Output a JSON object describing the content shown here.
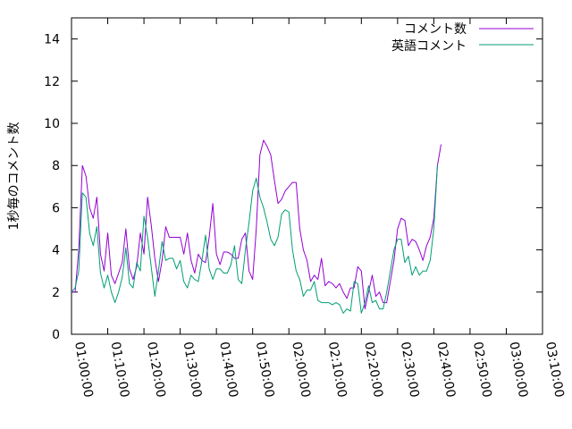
{
  "chart_data": {
    "type": "line",
    "title": "",
    "xlabel": "",
    "ylabel": "1秒毎のコメント数",
    "ylim": [
      0,
      15
    ],
    "y_ticks": [
      "0",
      "2",
      "4",
      "6",
      "8",
      "10",
      "12",
      "14"
    ],
    "y_tick_values": [
      0,
      2,
      4,
      6,
      8,
      10,
      12,
      14
    ],
    "x_ticks": [
      "01:00:00",
      "01:10:00",
      "01:20:00",
      "01:30:00",
      "01:40:00",
      "01:50:00",
      "02:00:00",
      "02:10:00",
      "02:20:00",
      "02:30:00",
      "02:40:00",
      "02:50:00",
      "03:00:00",
      "03:10:00"
    ],
    "x_tick_values": [
      0,
      10,
      20,
      30,
      40,
      50,
      60,
      70,
      80,
      90,
      100,
      110,
      120,
      130
    ],
    "xlim": [
      0,
      130
    ],
    "x_unit": "minutes from 01:00:00",
    "legend_position": "top-right",
    "grid": false,
    "series": [
      {
        "name": "コメント数",
        "color": "#9400d3",
        "points": [
          [
            0,
            2.0
          ],
          [
            1,
            2.0
          ],
          [
            2,
            4.0
          ],
          [
            3,
            8.0
          ],
          [
            4,
            7.5
          ],
          [
            5,
            6.0
          ],
          [
            6,
            5.5
          ],
          [
            7,
            6.5
          ],
          [
            8,
            3.8
          ],
          [
            9,
            3.0
          ],
          [
            10,
            4.8
          ],
          [
            11,
            2.8
          ],
          [
            12,
            2.4
          ],
          [
            13,
            2.9
          ],
          [
            14,
            3.4
          ],
          [
            15,
            5.0
          ],
          [
            16,
            3.1
          ],
          [
            17,
            2.6
          ],
          [
            18,
            3.2
          ],
          [
            19,
            4.8
          ],
          [
            20,
            3.8
          ],
          [
            21,
            6.5
          ],
          [
            22,
            5.2
          ],
          [
            23,
            3.6
          ],
          [
            24,
            2.5
          ],
          [
            25,
            3.5
          ],
          [
            26,
            5.1
          ],
          [
            27,
            4.6
          ],
          [
            28,
            4.6
          ],
          [
            29,
            4.6
          ],
          [
            30,
            4.6
          ],
          [
            31,
            3.8
          ],
          [
            32,
            4.8
          ],
          [
            33,
            3.5
          ],
          [
            34,
            2.9
          ],
          [
            35,
            3.8
          ],
          [
            36,
            3.5
          ],
          [
            37,
            3.4
          ],
          [
            38,
            4.6
          ],
          [
            39,
            6.2
          ],
          [
            40,
            3.8
          ],
          [
            41,
            3.3
          ],
          [
            42,
            3.9
          ],
          [
            43,
            3.9
          ],
          [
            44,
            3.8
          ],
          [
            45,
            3.6
          ],
          [
            46,
            3.6
          ],
          [
            47,
            4.5
          ],
          [
            48,
            4.8
          ],
          [
            49,
            3.0
          ],
          [
            50,
            2.6
          ],
          [
            51,
            5.0
          ],
          [
            52,
            8.5
          ],
          [
            53,
            9.2
          ],
          [
            54,
            8.9
          ],
          [
            55,
            8.5
          ],
          [
            56,
            7.3
          ],
          [
            57,
            6.2
          ],
          [
            58,
            6.4
          ],
          [
            59,
            6.8
          ],
          [
            60,
            7.0
          ],
          [
            61,
            7.2
          ],
          [
            62,
            7.2
          ],
          [
            63,
            5.0
          ],
          [
            64,
            4.0
          ],
          [
            65,
            3.5
          ],
          [
            66,
            2.5
          ],
          [
            67,
            2.8
          ],
          [
            68,
            2.6
          ],
          [
            69,
            3.6
          ],
          [
            70,
            2.3
          ],
          [
            71,
            2.5
          ],
          [
            72,
            2.4
          ],
          [
            73,
            2.2
          ],
          [
            74,
            2.4
          ],
          [
            75,
            2.0
          ],
          [
            76,
            1.7
          ],
          [
            77,
            2.2
          ],
          [
            78,
            2.2
          ],
          [
            79,
            3.2
          ],
          [
            80,
            3.0
          ],
          [
            81,
            1.2
          ],
          [
            82,
            2.0
          ],
          [
            83,
            2.8
          ],
          [
            84,
            1.8
          ],
          [
            85,
            2.0
          ],
          [
            86,
            1.5
          ],
          [
            87,
            1.5
          ],
          [
            88,
            2.5
          ],
          [
            89,
            3.5
          ],
          [
            90,
            5.0
          ],
          [
            91,
            5.5
          ],
          [
            92,
            5.4
          ],
          [
            93,
            4.2
          ],
          [
            94,
            4.5
          ],
          [
            95,
            4.4
          ],
          [
            96,
            4.0
          ],
          [
            97,
            3.5
          ],
          [
            98,
            4.2
          ],
          [
            99,
            4.6
          ],
          [
            100,
            5.5
          ],
          [
            101,
            8.0
          ],
          [
            102,
            9.0
          ]
        ]
      },
      {
        "name": "英語コメント",
        "color": "#009e73",
        "points": [
          [
            0,
            2.0
          ],
          [
            1,
            2.2
          ],
          [
            2,
            3.0
          ],
          [
            3,
            6.7
          ],
          [
            4,
            6.5
          ],
          [
            5,
            4.8
          ],
          [
            6,
            4.2
          ],
          [
            7,
            5.1
          ],
          [
            8,
            2.9
          ],
          [
            9,
            2.2
          ],
          [
            10,
            2.8
          ],
          [
            11,
            2.0
          ],
          [
            12,
            1.5
          ],
          [
            13,
            2.0
          ],
          [
            14,
            2.7
          ],
          [
            15,
            4.1
          ],
          [
            16,
            2.4
          ],
          [
            17,
            2.2
          ],
          [
            18,
            3.4
          ],
          [
            19,
            3.0
          ],
          [
            20,
            5.6
          ],
          [
            21,
            4.6
          ],
          [
            22,
            3.2
          ],
          [
            23,
            1.8
          ],
          [
            24,
            3.0
          ],
          [
            25,
            4.4
          ],
          [
            26,
            3.5
          ],
          [
            27,
            3.6
          ],
          [
            28,
            3.6
          ],
          [
            29,
            3.1
          ],
          [
            30,
            3.5
          ],
          [
            31,
            2.5
          ],
          [
            32,
            2.2
          ],
          [
            33,
            2.8
          ],
          [
            34,
            2.6
          ],
          [
            35,
            2.5
          ],
          [
            36,
            3.5
          ],
          [
            37,
            4.7
          ],
          [
            38,
            3.1
          ],
          [
            39,
            2.6
          ],
          [
            40,
            3.1
          ],
          [
            41,
            3.1
          ],
          [
            42,
            2.9
          ],
          [
            43,
            2.9
          ],
          [
            44,
            3.3
          ],
          [
            45,
            4.2
          ],
          [
            46,
            2.6
          ],
          [
            47,
            2.4
          ],
          [
            48,
            4.0
          ],
          [
            49,
            5.3
          ],
          [
            50,
            6.8
          ],
          [
            51,
            7.4
          ],
          [
            52,
            6.5
          ],
          [
            53,
            6.0
          ],
          [
            54,
            5.3
          ],
          [
            55,
            4.5
          ],
          [
            56,
            4.2
          ],
          [
            57,
            4.6
          ],
          [
            58,
            5.7
          ],
          [
            59,
            5.9
          ],
          [
            60,
            5.8
          ],
          [
            61,
            4.0
          ],
          [
            62,
            3.0
          ],
          [
            63,
            2.6
          ],
          [
            64,
            1.8
          ],
          [
            65,
            2.1
          ],
          [
            66,
            2.1
          ],
          [
            67,
            2.5
          ],
          [
            68,
            1.6
          ],
          [
            69,
            1.5
          ],
          [
            70,
            1.5
          ],
          [
            71,
            1.5
          ],
          [
            72,
            1.4
          ],
          [
            73,
            1.5
          ],
          [
            74,
            1.4
          ],
          [
            75,
            1.0
          ],
          [
            76,
            1.2
          ],
          [
            77,
            1.1
          ],
          [
            78,
            2.5
          ],
          [
            79,
            2.4
          ],
          [
            80,
            1.0
          ],
          [
            81,
            1.5
          ],
          [
            82,
            2.3
          ],
          [
            83,
            1.5
          ],
          [
            84,
            1.6
          ],
          [
            85,
            1.2
          ],
          [
            86,
            1.2
          ],
          [
            87,
            2.0
          ],
          [
            88,
            3.0
          ],
          [
            89,
            4.0
          ],
          [
            90,
            4.5
          ],
          [
            91,
            4.5
          ],
          [
            92,
            3.4
          ],
          [
            93,
            3.7
          ],
          [
            94,
            2.8
          ],
          [
            95,
            3.2
          ],
          [
            96,
            2.8
          ],
          [
            97,
            3.0
          ],
          [
            98,
            3.0
          ],
          [
            99,
            3.5
          ],
          [
            100,
            5.0
          ],
          [
            101,
            8.0
          ]
        ]
      }
    ]
  }
}
